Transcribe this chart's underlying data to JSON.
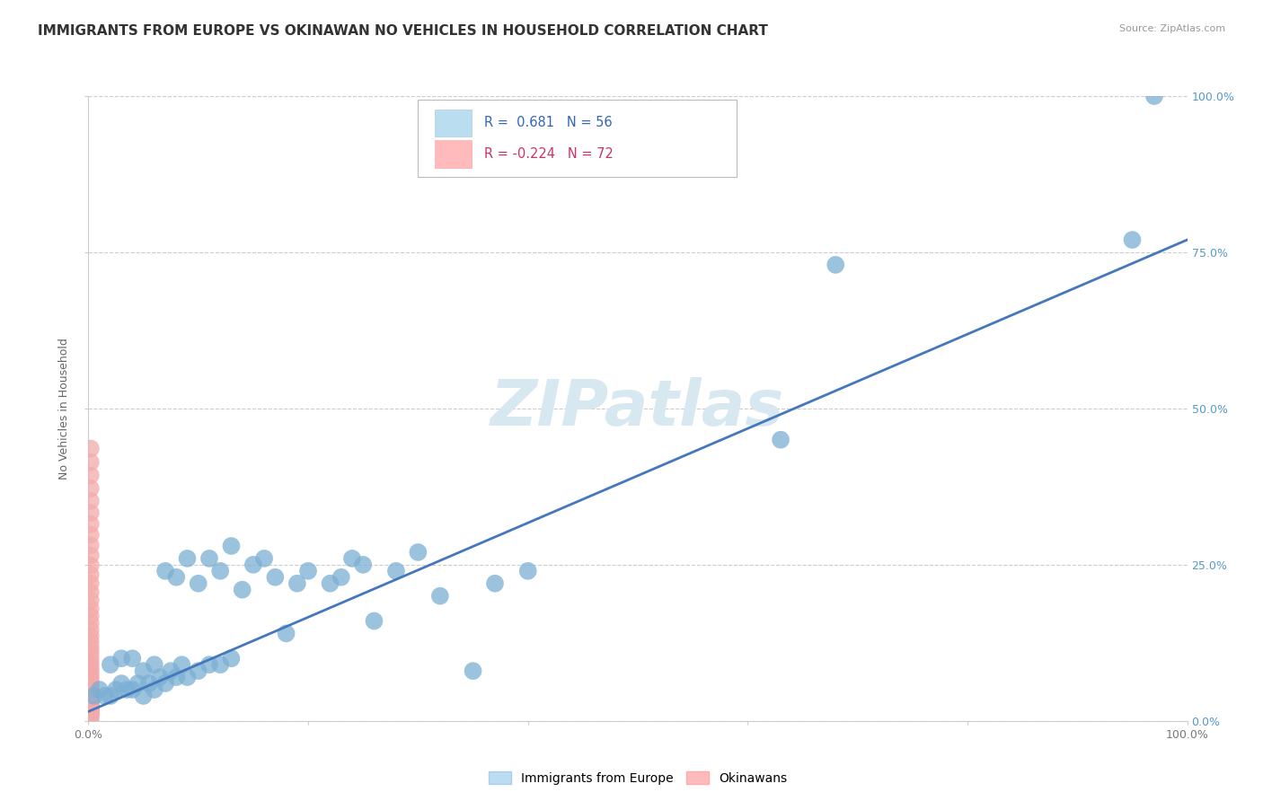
{
  "title": "IMMIGRANTS FROM EUROPE VS OKINAWAN NO VEHICLES IN HOUSEHOLD CORRELATION CHART",
  "source": "Source: ZipAtlas.com",
  "ylabel": "No Vehicles in Household",
  "xlim": [
    0,
    1.0
  ],
  "ylim": [
    0,
    1.0
  ],
  "legend_r_blue": "R =  0.681",
  "legend_n_blue": "N = 56",
  "legend_r_pink": "R = -0.224",
  "legend_n_pink": "N = 72",
  "legend_label_blue": "Immigrants from Europe",
  "legend_label_pink": "Okinawans",
  "blue_color": "#7BAFD4",
  "blue_edge_color": "#7BAFD4",
  "pink_color": "#F4AAAA",
  "pink_edge_color": "#F4AAAA",
  "line_color": "#4477BB",
  "watermark": "ZIPatlas",
  "watermark_color": "#D8E8F0",
  "blue_scatter_x": [
    0.005,
    0.01,
    0.015,
    0.02,
    0.02,
    0.025,
    0.03,
    0.03,
    0.035,
    0.04,
    0.04,
    0.045,
    0.05,
    0.05,
    0.055,
    0.06,
    0.06,
    0.065,
    0.07,
    0.07,
    0.075,
    0.08,
    0.08,
    0.085,
    0.09,
    0.09,
    0.1,
    0.1,
    0.11,
    0.11,
    0.12,
    0.12,
    0.13,
    0.13,
    0.14,
    0.15,
    0.16,
    0.17,
    0.18,
    0.19,
    0.2,
    0.22,
    0.23,
    0.24,
    0.25,
    0.26,
    0.28,
    0.3,
    0.32,
    0.35,
    0.37,
    0.4,
    0.63,
    0.68,
    0.95,
    0.97
  ],
  "blue_scatter_y": [
    0.04,
    0.05,
    0.04,
    0.04,
    0.09,
    0.05,
    0.06,
    0.1,
    0.05,
    0.05,
    0.1,
    0.06,
    0.04,
    0.08,
    0.06,
    0.05,
    0.09,
    0.07,
    0.06,
    0.24,
    0.08,
    0.07,
    0.23,
    0.09,
    0.07,
    0.26,
    0.08,
    0.22,
    0.09,
    0.26,
    0.09,
    0.24,
    0.1,
    0.28,
    0.21,
    0.25,
    0.26,
    0.23,
    0.14,
    0.22,
    0.24,
    0.22,
    0.23,
    0.26,
    0.25,
    0.16,
    0.24,
    0.27,
    0.2,
    0.08,
    0.22,
    0.24,
    0.45,
    0.73,
    0.77,
    1.0
  ],
  "pink_scatter_x": [
    0.002,
    0.002,
    0.002,
    0.002,
    0.002,
    0.002,
    0.002,
    0.002,
    0.002,
    0.002,
    0.002,
    0.002,
    0.002,
    0.002,
    0.002,
    0.002,
    0.002,
    0.002,
    0.002,
    0.002,
    0.002,
    0.002,
    0.002,
    0.002,
    0.002,
    0.002,
    0.002,
    0.002,
    0.002,
    0.002,
    0.002,
    0.002,
    0.002,
    0.002,
    0.002,
    0.002,
    0.002,
    0.002,
    0.002,
    0.002,
    0.002,
    0.002,
    0.002,
    0.002,
    0.002,
    0.002,
    0.002,
    0.002,
    0.002,
    0.002,
    0.002,
    0.002,
    0.002,
    0.002,
    0.002,
    0.002,
    0.002,
    0.002,
    0.002,
    0.002,
    0.002,
    0.002,
    0.002,
    0.002,
    0.002,
    0.002,
    0.002,
    0.002,
    0.002,
    0.002,
    0.002,
    0.002
  ],
  "pink_scatter_y": [
    0.002,
    0.006,
    0.01,
    0.014,
    0.018,
    0.022,
    0.026,
    0.03,
    0.034,
    0.038,
    0.042,
    0.046,
    0.05,
    0.055,
    0.06,
    0.065,
    0.07,
    0.076,
    0.082,
    0.088,
    0.095,
    0.102,
    0.11,
    0.118,
    0.127,
    0.136,
    0.146,
    0.157,
    0.168,
    0.18,
    0.193,
    0.206,
    0.22,
    0.234,
    0.249,
    0.265,
    0.281,
    0.298,
    0.315,
    0.333,
    0.352,
    0.372,
    0.393,
    0.414,
    0.436,
    0.026,
    0.03,
    0.027,
    0.024,
    0.022,
    0.02,
    0.018,
    0.016,
    0.016,
    0.016,
    0.016,
    0.016,
    0.016,
    0.016,
    0.016,
    0.016,
    0.016,
    0.016,
    0.014,
    0.014,
    0.014,
    0.014,
    0.014,
    0.016,
    0.016,
    0.016,
    0.016
  ],
  "trendline_x": [
    0.0,
    1.0
  ],
  "trendline_y": [
    0.015,
    0.77
  ],
  "background_color": "#FFFFFF",
  "grid_color": "#CCCCCC",
  "title_fontsize": 11,
  "axis_fontsize": 9,
  "watermark_fontsize": 52,
  "right_tick_color": "#5599CC"
}
